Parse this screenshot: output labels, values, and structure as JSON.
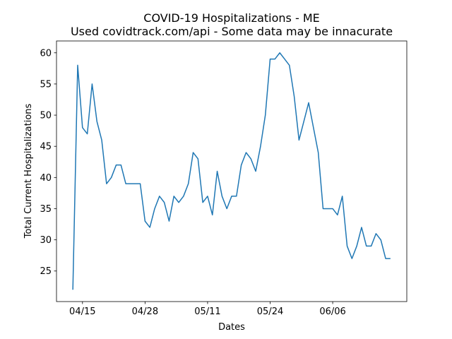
{
  "chart_data": {
    "type": "line",
    "title": "COVID-19 Hospitalizations - ME",
    "subtitle": "Used covidtrack.com/api - Some data may be innacurate",
    "xlabel": "Dates",
    "ylabel": "Total Current Hospitalizations",
    "x_tick_labels": [
      "04/15",
      "04/28",
      "05/11",
      "05/24",
      "06/06"
    ],
    "x_tick_days": [
      0,
      13,
      26,
      39,
      52
    ],
    "y_ticks": [
      25,
      30,
      35,
      40,
      45,
      50,
      55,
      60
    ],
    "xlim": [
      -5.4,
      67.4
    ],
    "ylim": [
      20.1,
      61.9
    ],
    "grid": false,
    "series": [
      {
        "color": "#1f77b4",
        "x": [
          -2,
          -1,
          0,
          1,
          2,
          3,
          4,
          5,
          6,
          7,
          8,
          9,
          10,
          11,
          12,
          13,
          14,
          15,
          16,
          17,
          18,
          19,
          20,
          21,
          22,
          23,
          24,
          25,
          26,
          27,
          28,
          29,
          30,
          31,
          32,
          33,
          34,
          35,
          36,
          37,
          38,
          39,
          40,
          41,
          42,
          43,
          44,
          45,
          46,
          47,
          48,
          49,
          50,
          51,
          52,
          53,
          54,
          55,
          56,
          57,
          58,
          59,
          60,
          61,
          62,
          63,
          64
        ],
        "values": [
          22,
          58,
          48,
          47,
          55,
          49,
          46,
          39,
          40,
          42,
          42,
          39,
          39,
          39,
          39,
          33,
          32,
          35,
          37,
          36,
          33,
          37,
          36,
          37,
          39,
          44,
          43,
          36,
          37,
          34,
          41,
          37,
          35,
          37,
          37,
          42,
          44,
          43,
          41,
          45,
          50,
          59,
          59,
          60,
          59,
          58,
          53,
          46,
          49,
          52,
          48,
          44,
          35,
          35,
          35,
          34,
          37,
          29,
          27,
          29,
          32,
          29,
          29,
          31,
          30,
          27,
          27
        ]
      }
    ]
  }
}
